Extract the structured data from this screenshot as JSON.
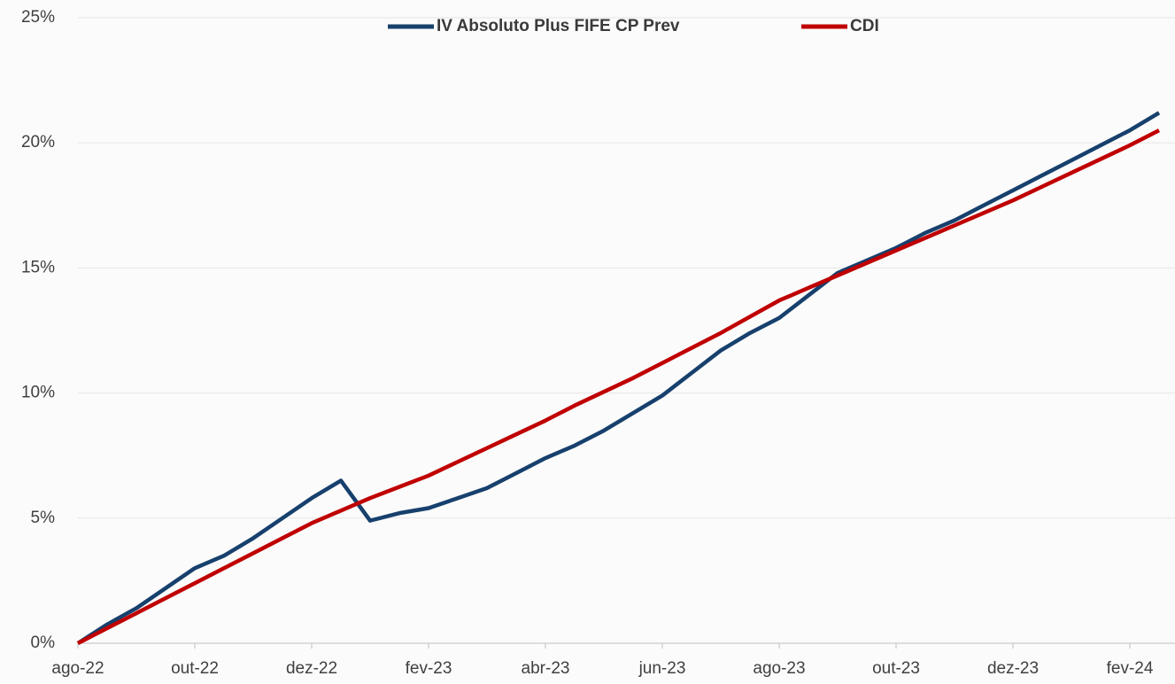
{
  "chart_data": {
    "type": "line",
    "categories": [
      "ago-22",
      null,
      null,
      null,
      "out-22",
      null,
      null,
      null,
      "dez-22",
      null,
      null,
      null,
      "fev-23",
      null,
      null,
      null,
      "abr-23",
      null,
      null,
      null,
      "jun-23",
      null,
      null,
      null,
      "ago-23",
      null,
      null,
      null,
      "out-23",
      null,
      null,
      null,
      "dez-23",
      null,
      null,
      null,
      "fev-24",
      null
    ],
    "series": [
      {
        "name": "IV Absoluto Plus FIFE CP Prev",
        "color": "#17406d",
        "values": [
          0,
          0.75,
          1.4,
          2.2,
          3.0,
          3.5,
          4.2,
          5.0,
          5.8,
          6.5,
          4.9,
          5.2,
          5.4,
          5.8,
          6.2,
          6.8,
          7.4,
          7.9,
          8.5,
          9.2,
          9.9,
          10.8,
          11.7,
          12.4,
          13.0,
          13.9,
          14.8,
          15.3,
          15.8,
          16.4,
          16.9,
          17.5,
          18.1,
          18.7,
          19.3,
          19.9,
          20.5,
          21.2
        ]
      },
      {
        "name": "CDI",
        "color": "#c00000",
        "values": [
          0,
          0.6,
          1.2,
          1.8,
          2.4,
          3.0,
          3.6,
          4.2,
          4.8,
          5.3,
          5.8,
          6.25,
          6.7,
          7.25,
          7.8,
          8.35,
          8.9,
          9.5,
          10.05,
          10.6,
          11.2,
          11.8,
          12.4,
          13.05,
          13.7,
          14.2,
          14.7,
          15.2,
          15.7,
          16.2,
          16.7,
          17.2,
          17.7,
          18.25,
          18.8,
          19.35,
          19.9,
          20.5
        ]
      }
    ],
    "ylim": [
      0,
      25
    ],
    "yticks": [
      {
        "value": 0,
        "label": "0%"
      },
      {
        "value": 5,
        "label": "5%"
      },
      {
        "value": 10,
        "label": "10%"
      },
      {
        "value": 15,
        "label": "15%"
      },
      {
        "value": 20,
        "label": "20%"
      },
      {
        "value": 25,
        "label": "25%"
      }
    ],
    "grid": true,
    "legend": "top"
  }
}
